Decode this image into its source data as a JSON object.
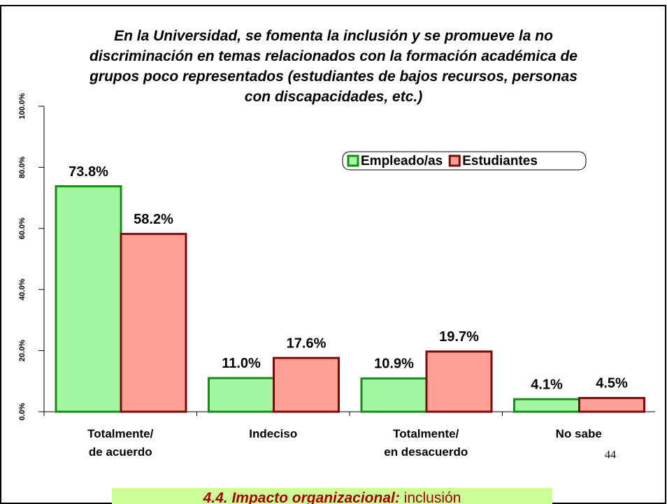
{
  "chart_data": {
    "type": "bar",
    "title": "En la Universidad, se fomenta la inclusión y se promueve la no\ndiscriminación en temas relacionados con la formación académica de\ngrupos poco representados (estudiantes de bajos recursos, personas\ncon discapacidades, etc.)",
    "categories": [
      "Totalmente/\nde acuerdo",
      "Indeciso",
      "Totalmente/\nen desacuerdo",
      "No sabe"
    ],
    "series": [
      {
        "name": "Empleado/as",
        "color": "#a3f7a0",
        "edge": "#1a8a1a",
        "values": [
          73.8,
          11.0,
          10.9,
          4.1
        ],
        "value_labels": [
          "73.8%",
          "11.0%",
          "10.9%",
          "4.1%"
        ]
      },
      {
        "name": "Estudiantes",
        "color": "#ffa096",
        "edge": "#7a0a0a",
        "values": [
          58.2,
          17.6,
          19.7,
          4.5
        ],
        "value_labels": [
          "58.2%",
          "17.6%",
          "19.7%",
          "4.5%"
        ]
      }
    ],
    "ylim": [
      0,
      100
    ],
    "yticks": [
      {
        "value": 0,
        "label": "0.0%"
      },
      {
        "value": 20,
        "label": "20.0%"
      },
      {
        "value": 40,
        "label": "40.0%"
      },
      {
        "value": 60,
        "label": "60.0%"
      },
      {
        "value": 80,
        "label": "80.0%"
      },
      {
        "value": 100,
        "label": "100.0%"
      }
    ],
    "legend": "upper right"
  },
  "page_number": "44",
  "footer": {
    "heading": "4.4. Impacto organizacional:",
    "topic": "inclusión"
  }
}
